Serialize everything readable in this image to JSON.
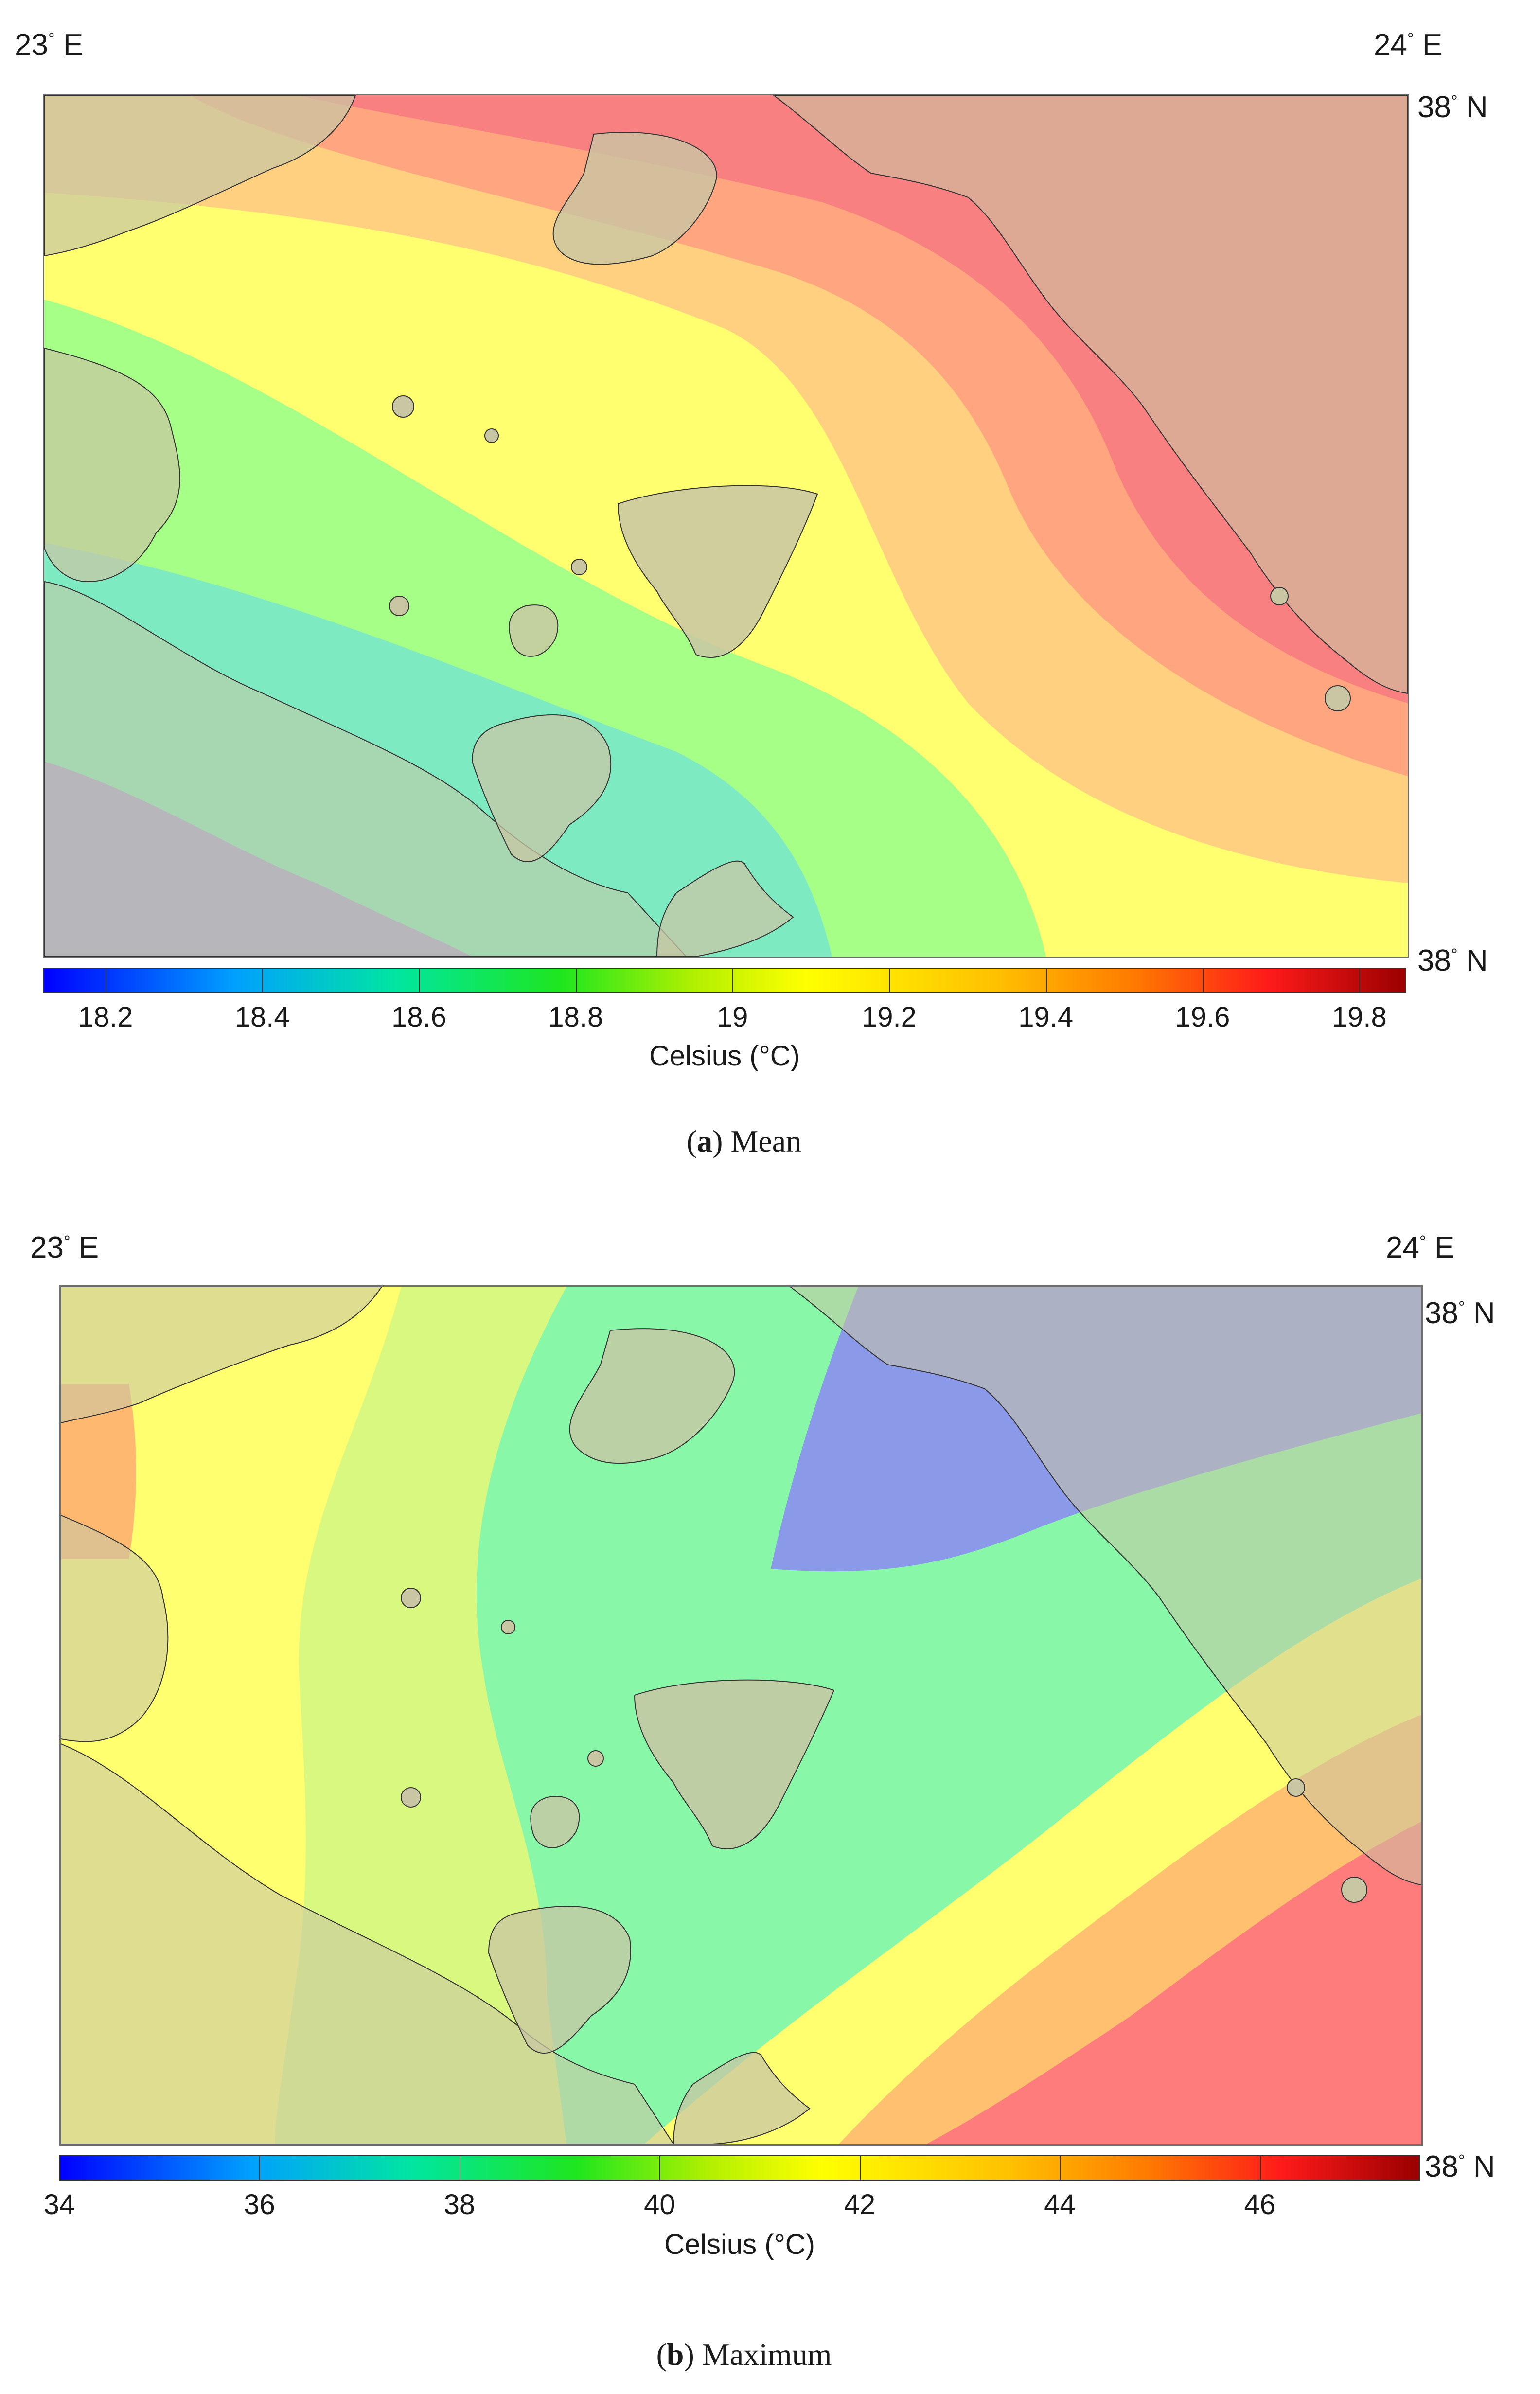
{
  "panels": [
    {
      "id": "a",
      "caption_letter": "a",
      "caption_text": "Mean",
      "coords": {
        "top_left": "23",
        "top_left_unit": "E",
        "top_right": "24",
        "top_right_unit": "E",
        "right_top": "38",
        "right_top_unit": "N",
        "right_bottom": "38",
        "right_bottom_unit": "N"
      },
      "colorbar": {
        "title": "Celsius (°C)",
        "ticks": [
          "18.2",
          "18.4",
          "18.6",
          "18.8",
          "19",
          "19.2",
          "19.4",
          "19.6",
          "19.8"
        ],
        "range": [
          18.12,
          19.86
        ]
      },
      "colors": {
        "land": "#c9c6a4",
        "sea_base": "#ffff66"
      }
    },
    {
      "id": "b",
      "caption_letter": "b",
      "caption_text": "Maximum",
      "coords": {
        "top_left": "23",
        "top_left_unit": "E",
        "top_right": "24",
        "top_right_unit": "E",
        "right_top": "38",
        "right_top_unit": "N",
        "right_bottom": "38",
        "right_bottom_unit": "N"
      },
      "colorbar": {
        "title": "Celsius (°C)",
        "ticks": [
          "34",
          "36",
          "38",
          "40",
          "42",
          "44",
          "46"
        ],
        "range": [
          34,
          47.6
        ]
      },
      "colors": {
        "land": "#c9c6a4",
        "sea_base": "#88f7a8"
      }
    }
  ]
}
